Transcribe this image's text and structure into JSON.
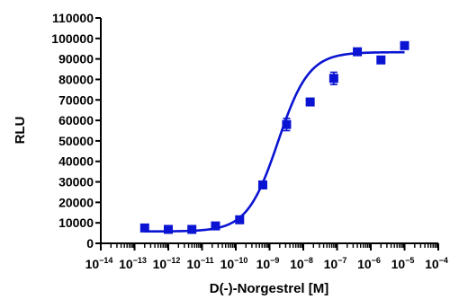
{
  "chart_data": {
    "type": "scatter",
    "title": "",
    "xlabel": "D(-)-Norgestrel [M]",
    "ylabel": "RLU",
    "x_scale": "log",
    "xlim": [
      1e-14,
      0.0001
    ],
    "ylim": [
      0,
      110000
    ],
    "x_ticks": [
      {
        "base": "10",
        "exp": "-14"
      },
      {
        "base": "10",
        "exp": "-13"
      },
      {
        "base": "10",
        "exp": "-12"
      },
      {
        "base": "10",
        "exp": "-11"
      },
      {
        "base": "10",
        "exp": "-10"
      },
      {
        "base": "10",
        "exp": "-9"
      },
      {
        "base": "10",
        "exp": "-8"
      },
      {
        "base": "10",
        "exp": "-7"
      },
      {
        "base": "10",
        "exp": "-6"
      },
      {
        "base": "10",
        "exp": "-5"
      },
      {
        "base": "10",
        "exp": "-4"
      }
    ],
    "y_ticks": [
      "0",
      "10000",
      "20000",
      "30000",
      "40000",
      "50000",
      "60000",
      "70000",
      "80000",
      "90000",
      "100000",
      "110000"
    ],
    "series": [
      {
        "color": "#0a14d2",
        "marker": "square",
        "points": [
          {
            "x": 2e-13,
            "y": 7500,
            "err": 800
          },
          {
            "x": 1e-12,
            "y": 6800,
            "err": 700
          },
          {
            "x": 5e-12,
            "y": 6800,
            "err": 700
          },
          {
            "x": 2.5e-11,
            "y": 8500,
            "err": 800
          },
          {
            "x": 1.3e-10,
            "y": 11500,
            "err": 900
          },
          {
            "x": 6.3e-10,
            "y": 28500,
            "err": 1200
          },
          {
            "x": 3.2e-09,
            "y": 58000,
            "err": 3000
          },
          {
            "x": 1.6e-08,
            "y": 69000,
            "err": 1200
          },
          {
            "x": 8e-08,
            "y": 80500,
            "err": 3000
          },
          {
            "x": 4e-07,
            "y": 93500,
            "err": 1500
          },
          {
            "x": 2e-06,
            "y": 89500,
            "err": 1500
          },
          {
            "x": 1e-05,
            "y": 96500,
            "err": 1500
          }
        ],
        "fit": {
          "model": "sigmoidal dose-response",
          "bottom": 5800,
          "top": 93300,
          "log_ec50": -8.75,
          "hill": 0.95
        }
      }
    ],
    "grid": false,
    "legend": "none"
  }
}
